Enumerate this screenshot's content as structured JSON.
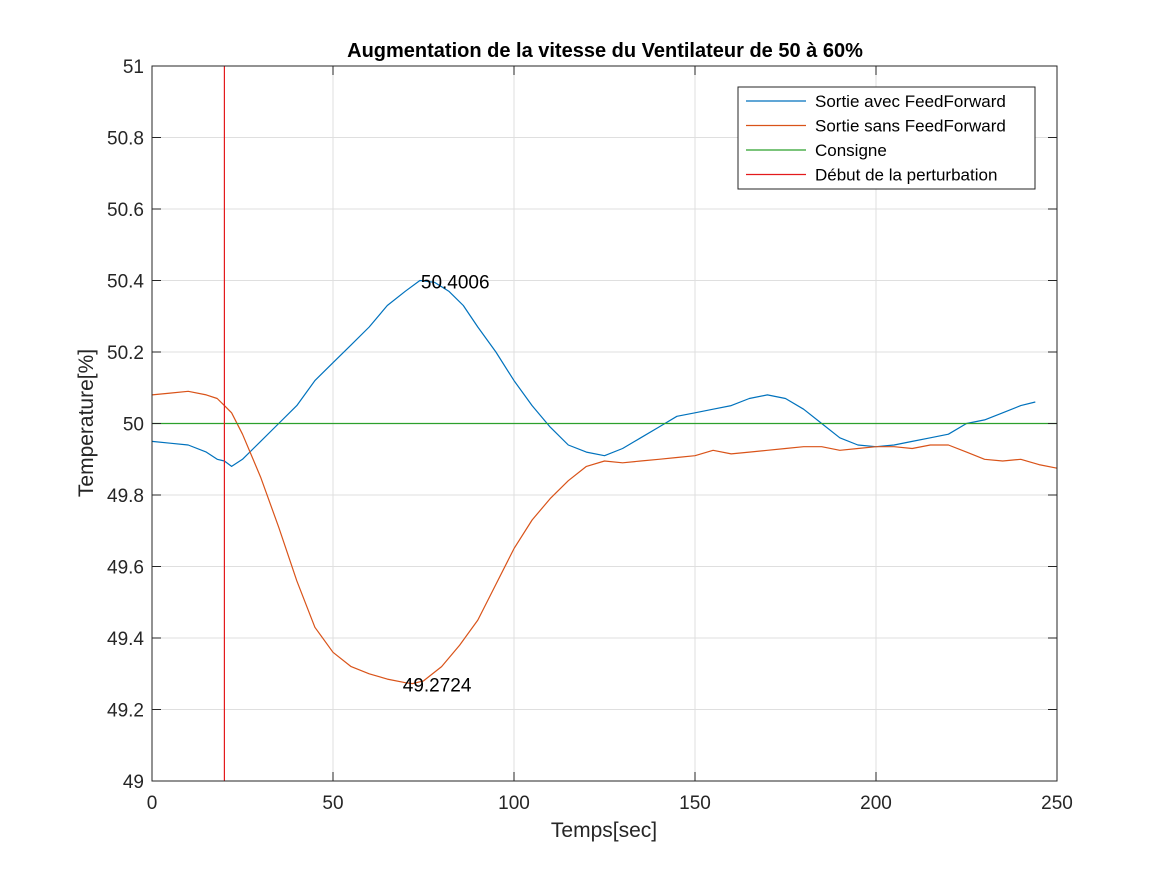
{
  "chart_data": {
    "type": "line",
    "title": "Augmentation de la vitesse du Ventilateur de 50 à 60%",
    "xlabel": "Temps[sec]",
    "ylabel": "Temperature[%]",
    "xlim": [
      0,
      250
    ],
    "ylim": [
      49,
      51
    ],
    "xticks": [
      0,
      50,
      100,
      150,
      200,
      250
    ],
    "xtick_labels": [
      "0",
      "50",
      "100",
      "150",
      "200",
      "250"
    ],
    "yticks": [
      49,
      49.2,
      49.4,
      49.6,
      49.8,
      50,
      50.2,
      50.4,
      50.6,
      50.8,
      51
    ],
    "ytick_labels": [
      "49",
      "49.2",
      "49.4",
      "49.6",
      "49.8",
      "50",
      "50.2",
      "50.4",
      "50.6",
      "50.8",
      "51"
    ],
    "grid": true,
    "legend_position": "top-right",
    "series": [
      {
        "name": "Sortie avec FeedForward",
        "color": "#0072BD",
        "x": [
          0,
          5,
          10,
          15,
          18,
          20,
          22,
          25,
          30,
          35,
          40,
          45,
          50,
          55,
          60,
          65,
          70,
          74,
          78,
          82,
          86,
          90,
          95,
          100,
          105,
          110,
          115,
          120,
          125,
          130,
          135,
          140,
          145,
          150,
          155,
          160,
          165,
          170,
          175,
          180,
          185,
          190,
          195,
          200,
          205,
          210,
          215,
          220,
          225,
          230,
          235,
          240,
          244
        ],
        "y": [
          49.95,
          49.945,
          49.94,
          49.92,
          49.9,
          49.895,
          49.88,
          49.9,
          49.95,
          50.0,
          50.05,
          50.12,
          50.17,
          50.22,
          50.27,
          50.33,
          50.37,
          50.4,
          50.395,
          50.37,
          50.33,
          50.27,
          50.2,
          50.12,
          50.05,
          49.99,
          49.94,
          49.92,
          49.91,
          49.93,
          49.96,
          49.99,
          50.02,
          50.03,
          50.04,
          50.05,
          50.07,
          50.08,
          50.07,
          50.04,
          50.0,
          49.96,
          49.94,
          49.935,
          49.94,
          49.95,
          49.96,
          49.97,
          50.0,
          50.01,
          50.03,
          50.05,
          50.06
        ]
      },
      {
        "name": "Sortie sans FeedForward",
        "color": "#D95319",
        "x": [
          0,
          5,
          10,
          15,
          18,
          20,
          22,
          25,
          30,
          35,
          40,
          45,
          50,
          55,
          60,
          65,
          70,
          72,
          75,
          80,
          85,
          90,
          95,
          100,
          105,
          110,
          115,
          120,
          125,
          130,
          135,
          140,
          145,
          150,
          155,
          160,
          165,
          170,
          175,
          180,
          185,
          190,
          195,
          200,
          205,
          210,
          215,
          220,
          225,
          230,
          235,
          240,
          245,
          250
        ],
        "y": [
          50.08,
          50.085,
          50.09,
          50.08,
          50.07,
          50.05,
          50.03,
          49.97,
          49.85,
          49.71,
          49.56,
          49.43,
          49.36,
          49.32,
          49.3,
          49.285,
          49.275,
          49.2724,
          49.28,
          49.32,
          49.38,
          49.45,
          49.55,
          49.65,
          49.73,
          49.79,
          49.84,
          49.88,
          49.895,
          49.89,
          49.895,
          49.9,
          49.905,
          49.91,
          49.925,
          49.915,
          49.92,
          49.925,
          49.93,
          49.935,
          49.935,
          49.925,
          49.93,
          49.935,
          49.935,
          49.93,
          49.94,
          49.94,
          49.92,
          49.9,
          49.895,
          49.9,
          49.885,
          49.875
        ]
      },
      {
        "name": "Consigne",
        "color": "#2CA02C",
        "x": [
          0,
          250
        ],
        "y": [
          50,
          50
        ]
      }
    ],
    "vertical_lines": [
      {
        "name": "Début de la perturbation",
        "color": "#E31A1C",
        "x": 20
      }
    ],
    "annotations": [
      {
        "text": "50.4006",
        "x": 74,
        "y": 50.4006
      },
      {
        "text": "49.2724",
        "x": 69,
        "y": 49.2724
      }
    ],
    "legend": [
      {
        "label": "Sortie avec FeedForward",
        "color": "#0072BD"
      },
      {
        "label": "Sortie sans FeedForward",
        "color": "#D95319"
      },
      {
        "label": "Consigne",
        "color": "#2CA02C"
      },
      {
        "label": "Début de la perturbation",
        "color": "#E31A1C"
      }
    ]
  }
}
